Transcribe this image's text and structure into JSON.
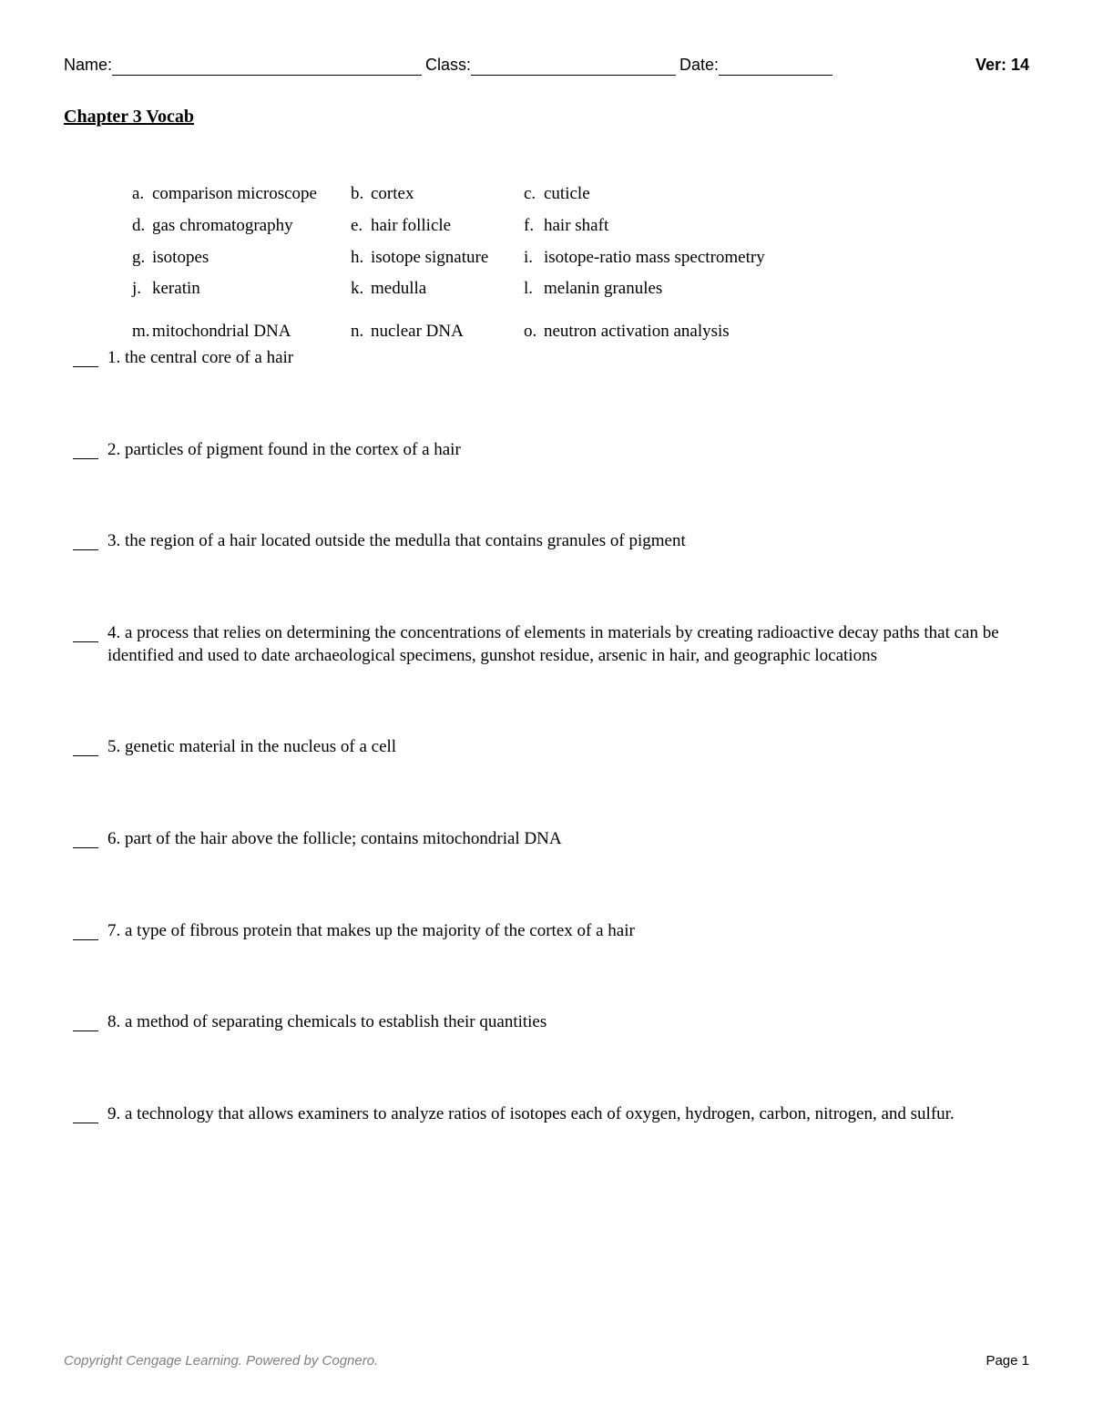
{
  "header": {
    "name_label": "Name:",
    "class_label": "Class:",
    "date_label": "Date:",
    "version_label": "Ver: 14"
  },
  "title": "Chapter 3 Vocab",
  "vocab": {
    "rows": [
      [
        {
          "letter": "a.",
          "term": "comparison microscope"
        },
        {
          "letter": "b.",
          "term": "cortex"
        },
        {
          "letter": "c.",
          "term": "cuticle"
        }
      ],
      [
        {
          "letter": "d.",
          "term": "gas chromatography"
        },
        {
          "letter": "e.",
          "term": "hair follicle"
        },
        {
          "letter": "f.",
          "term": "hair shaft"
        }
      ],
      [
        {
          "letter": "g.",
          "term": "isotopes"
        },
        {
          "letter": "h.",
          "term": "isotope signature"
        },
        {
          "letter": "i.",
          "term": "isotope-ratio mass spectrometry"
        }
      ],
      [
        {
          "letter": "j.",
          "term": "keratin"
        },
        {
          "letter": "k.",
          "term": "medulla"
        },
        {
          "letter": "l.",
          "term": "melanin granules"
        }
      ],
      [
        {
          "letter": "m.",
          "term": "mitochondrial DNA"
        },
        {
          "letter": "n.",
          "term": "nuclear DNA"
        },
        {
          "letter": "o.",
          "term": "neutron activation analysis"
        }
      ]
    ]
  },
  "questions": [
    {
      "num": "1.",
      "text": "the central core of a hair"
    },
    {
      "num": "2.",
      "text": "particles of pigment found in the cortex of a hair"
    },
    {
      "num": "3.",
      "text": "the region of a hair located outside the medulla that contains granules of pigment"
    },
    {
      "num": "4.",
      "text": "a process that relies on determining the concentrations of elements in materials by creating radioactive decay paths that can be identified and used to date archaeological specimens, gunshot residue, arsenic in hair, and geographic locations"
    },
    {
      "num": "5.",
      "text": "genetic material in the nucleus of a cell"
    },
    {
      "num": "6.",
      "text": "part of the hair above the follicle; contains mitochondrial DNA"
    },
    {
      "num": "7.",
      "text": "a type of fibrous protein that makes up the majority of the cortex of a hair"
    },
    {
      "num": "8.",
      "text": "a method of separating chemicals to establish their quantities"
    },
    {
      "num": "9.",
      "text": "a technology that allows examiners to analyze ratios of isotopes each of oxygen, hydrogen, carbon, nitrogen, and sulfur."
    }
  ],
  "footer": {
    "copyright": "Copyright Cengage Learning. Powered by Cognero.",
    "page": "Page 1"
  }
}
